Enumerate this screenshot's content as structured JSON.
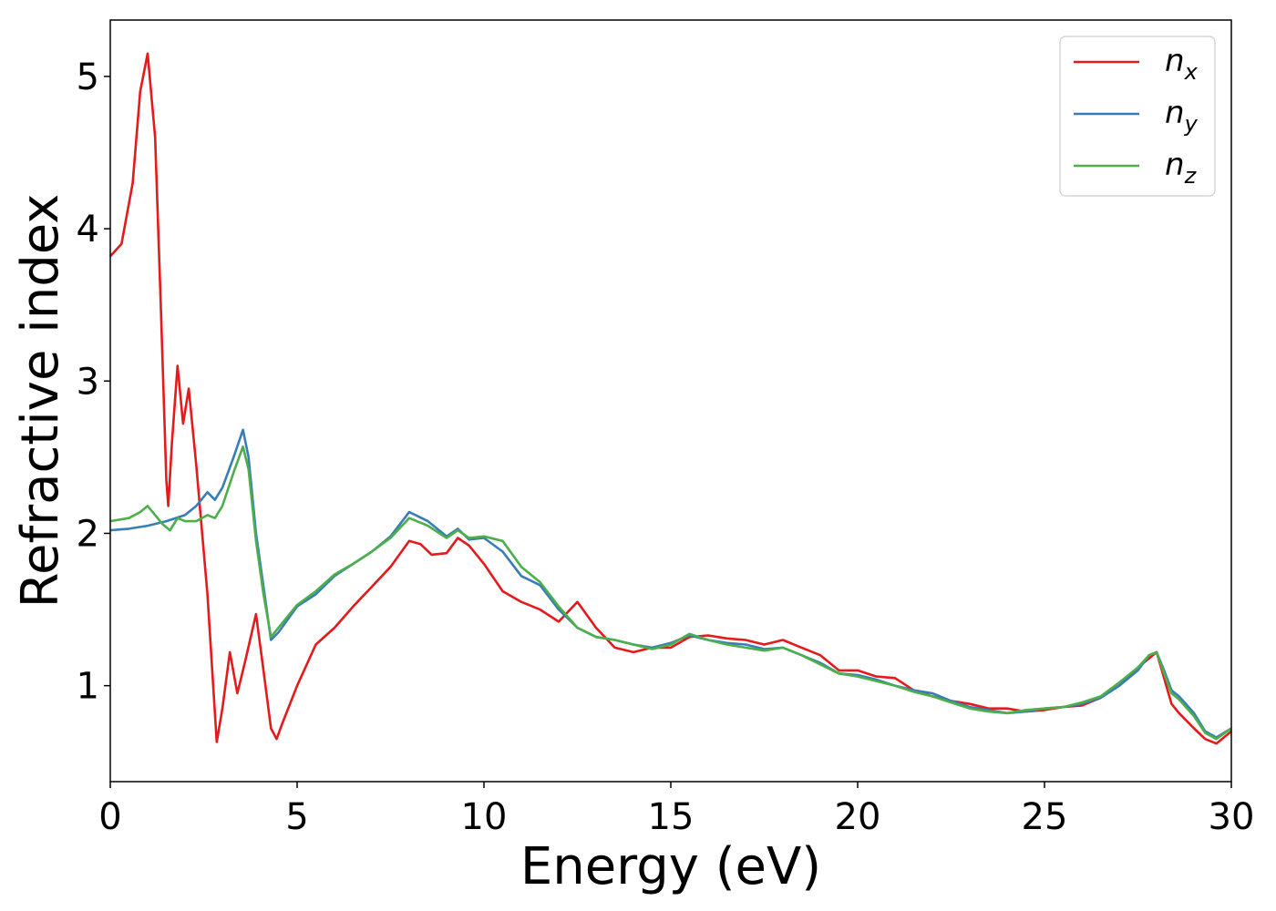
{
  "chart_data": {
    "type": "line",
    "xlabel": "Energy (eV)",
    "ylabel": "Refractive index",
    "xlim": [
      0,
      30
    ],
    "ylim": [
      0.37,
      5.37
    ],
    "xticks": [
      0,
      5,
      10,
      15,
      20,
      25,
      30
    ],
    "yticks": [
      1,
      2,
      3,
      4,
      5
    ],
    "grid": false,
    "legend_position": "top-right",
    "series": [
      {
        "name": "n",
        "subscript": "x",
        "color": "#e41a1c",
        "x": [
          0,
          0.3,
          0.6,
          0.8,
          1.0,
          1.2,
          1.35,
          1.5,
          1.55,
          1.65,
          1.8,
          1.95,
          2.1,
          2.3,
          2.6,
          2.85,
          3.0,
          3.2,
          3.4,
          3.6,
          3.9,
          4.1,
          4.3,
          4.45,
          4.6,
          5.0,
          5.5,
          6.0,
          6.5,
          7.0,
          7.5,
          8.0,
          8.3,
          8.6,
          9.0,
          9.3,
          9.6,
          10.0,
          10.5,
          11.0,
          11.5,
          12.0,
          12.5,
          13.0,
          13.5,
          14.0,
          14.5,
          15.0,
          15.5,
          16.0,
          16.5,
          17.0,
          17.5,
          18.0,
          18.5,
          19.0,
          19.5,
          20.0,
          20.5,
          21.0,
          21.5,
          22.0,
          22.5,
          23.0,
          23.5,
          24.0,
          24.5,
          25.0,
          25.5,
          26.0,
          26.5,
          27.0,
          27.5,
          27.8,
          28.0,
          28.2,
          28.4,
          28.6,
          29.0,
          29.3,
          29.6,
          30.0
        ],
        "values": [
          3.82,
          3.9,
          4.3,
          4.9,
          5.15,
          4.6,
          3.5,
          2.35,
          2.18,
          2.6,
          3.1,
          2.72,
          2.95,
          2.45,
          1.6,
          0.63,
          0.85,
          1.22,
          0.95,
          1.15,
          1.47,
          1.1,
          0.72,
          0.65,
          0.75,
          1.0,
          1.27,
          1.38,
          1.52,
          1.65,
          1.78,
          1.95,
          1.93,
          1.86,
          1.87,
          1.97,
          1.92,
          1.8,
          1.62,
          1.55,
          1.5,
          1.42,
          1.55,
          1.38,
          1.25,
          1.22,
          1.25,
          1.25,
          1.32,
          1.33,
          1.31,
          1.3,
          1.27,
          1.3,
          1.25,
          1.2,
          1.1,
          1.1,
          1.06,
          1.05,
          0.97,
          0.93,
          0.9,
          0.88,
          0.85,
          0.85,
          0.83,
          0.84,
          0.86,
          0.87,
          0.92,
          1.0,
          1.12,
          1.18,
          1.22,
          1.05,
          0.88,
          0.82,
          0.72,
          0.65,
          0.62,
          0.7
        ]
      },
      {
        "name": "n",
        "subscript": "y",
        "color": "#377eb8",
        "x": [
          0,
          0.5,
          1.0,
          1.5,
          2.0,
          2.3,
          2.6,
          2.8,
          3.0,
          3.3,
          3.55,
          3.7,
          3.9,
          4.1,
          4.3,
          4.5,
          5.0,
          5.5,
          6.0,
          6.5,
          7.0,
          7.5,
          8.0,
          8.5,
          9.0,
          9.3,
          9.6,
          10.0,
          10.5,
          11.0,
          11.5,
          12.0,
          12.5,
          13.0,
          13.5,
          14.0,
          14.5,
          15.0,
          15.5,
          16.0,
          16.5,
          17.0,
          17.5,
          18.0,
          18.5,
          19.0,
          19.5,
          20.0,
          20.5,
          21.0,
          21.5,
          22.0,
          22.5,
          23.0,
          23.5,
          24.0,
          24.5,
          25.0,
          25.5,
          26.0,
          26.5,
          27.0,
          27.5,
          27.8,
          28.0,
          28.2,
          28.4,
          28.6,
          29.0,
          29.3,
          29.6,
          30.0
        ],
        "values": [
          2.02,
          2.03,
          2.05,
          2.08,
          2.12,
          2.18,
          2.27,
          2.22,
          2.3,
          2.5,
          2.68,
          2.5,
          2.0,
          1.65,
          1.3,
          1.35,
          1.52,
          1.6,
          1.72,
          1.8,
          1.88,
          1.98,
          2.14,
          2.08,
          1.98,
          2.03,
          1.96,
          1.97,
          1.88,
          1.72,
          1.66,
          1.5,
          1.38,
          1.32,
          1.3,
          1.27,
          1.25,
          1.28,
          1.33,
          1.3,
          1.28,
          1.27,
          1.24,
          1.25,
          1.2,
          1.15,
          1.08,
          1.07,
          1.04,
          1.0,
          0.97,
          0.95,
          0.9,
          0.86,
          0.84,
          0.82,
          0.83,
          0.85,
          0.86,
          0.88,
          0.92,
          1.0,
          1.1,
          1.2,
          1.22,
          1.1,
          0.97,
          0.93,
          0.82,
          0.7,
          0.66,
          0.72
        ]
      },
      {
        "name": "n",
        "subscript": "z",
        "color": "#4daf4a",
        "x": [
          0,
          0.5,
          0.8,
          1.0,
          1.2,
          1.4,
          1.6,
          1.8,
          2.0,
          2.3,
          2.6,
          2.8,
          3.0,
          3.3,
          3.55,
          3.7,
          3.9,
          4.1,
          4.3,
          4.5,
          5.0,
          5.5,
          6.0,
          6.5,
          7.0,
          7.5,
          8.0,
          8.5,
          9.0,
          9.3,
          9.6,
          10.0,
          10.5,
          11.0,
          11.5,
          12.0,
          12.5,
          13.0,
          13.5,
          14.0,
          14.5,
          15.0,
          15.5,
          16.0,
          16.5,
          17.0,
          17.5,
          18.0,
          18.5,
          19.0,
          19.5,
          20.0,
          20.5,
          21.0,
          21.5,
          22.0,
          22.5,
          23.0,
          23.5,
          24.0,
          24.5,
          25.0,
          25.5,
          26.0,
          26.5,
          27.0,
          27.5,
          27.8,
          28.0,
          28.2,
          28.4,
          28.6,
          29.0,
          29.3,
          29.6,
          30.0
        ],
        "values": [
          2.08,
          2.1,
          2.14,
          2.18,
          2.12,
          2.06,
          2.02,
          2.1,
          2.08,
          2.08,
          2.12,
          2.1,
          2.18,
          2.4,
          2.57,
          2.42,
          1.95,
          1.6,
          1.32,
          1.38,
          1.53,
          1.62,
          1.73,
          1.8,
          1.88,
          1.97,
          2.1,
          2.05,
          1.97,
          2.02,
          1.97,
          1.98,
          1.95,
          1.78,
          1.68,
          1.52,
          1.38,
          1.32,
          1.3,
          1.27,
          1.24,
          1.27,
          1.34,
          1.3,
          1.27,
          1.25,
          1.23,
          1.25,
          1.2,
          1.14,
          1.08,
          1.06,
          1.03,
          1.0,
          0.96,
          0.93,
          0.89,
          0.85,
          0.83,
          0.82,
          0.84,
          0.85,
          0.86,
          0.89,
          0.93,
          1.02,
          1.12,
          1.2,
          1.22,
          1.08,
          0.95,
          0.91,
          0.8,
          0.69,
          0.65,
          0.72
        ]
      }
    ]
  }
}
